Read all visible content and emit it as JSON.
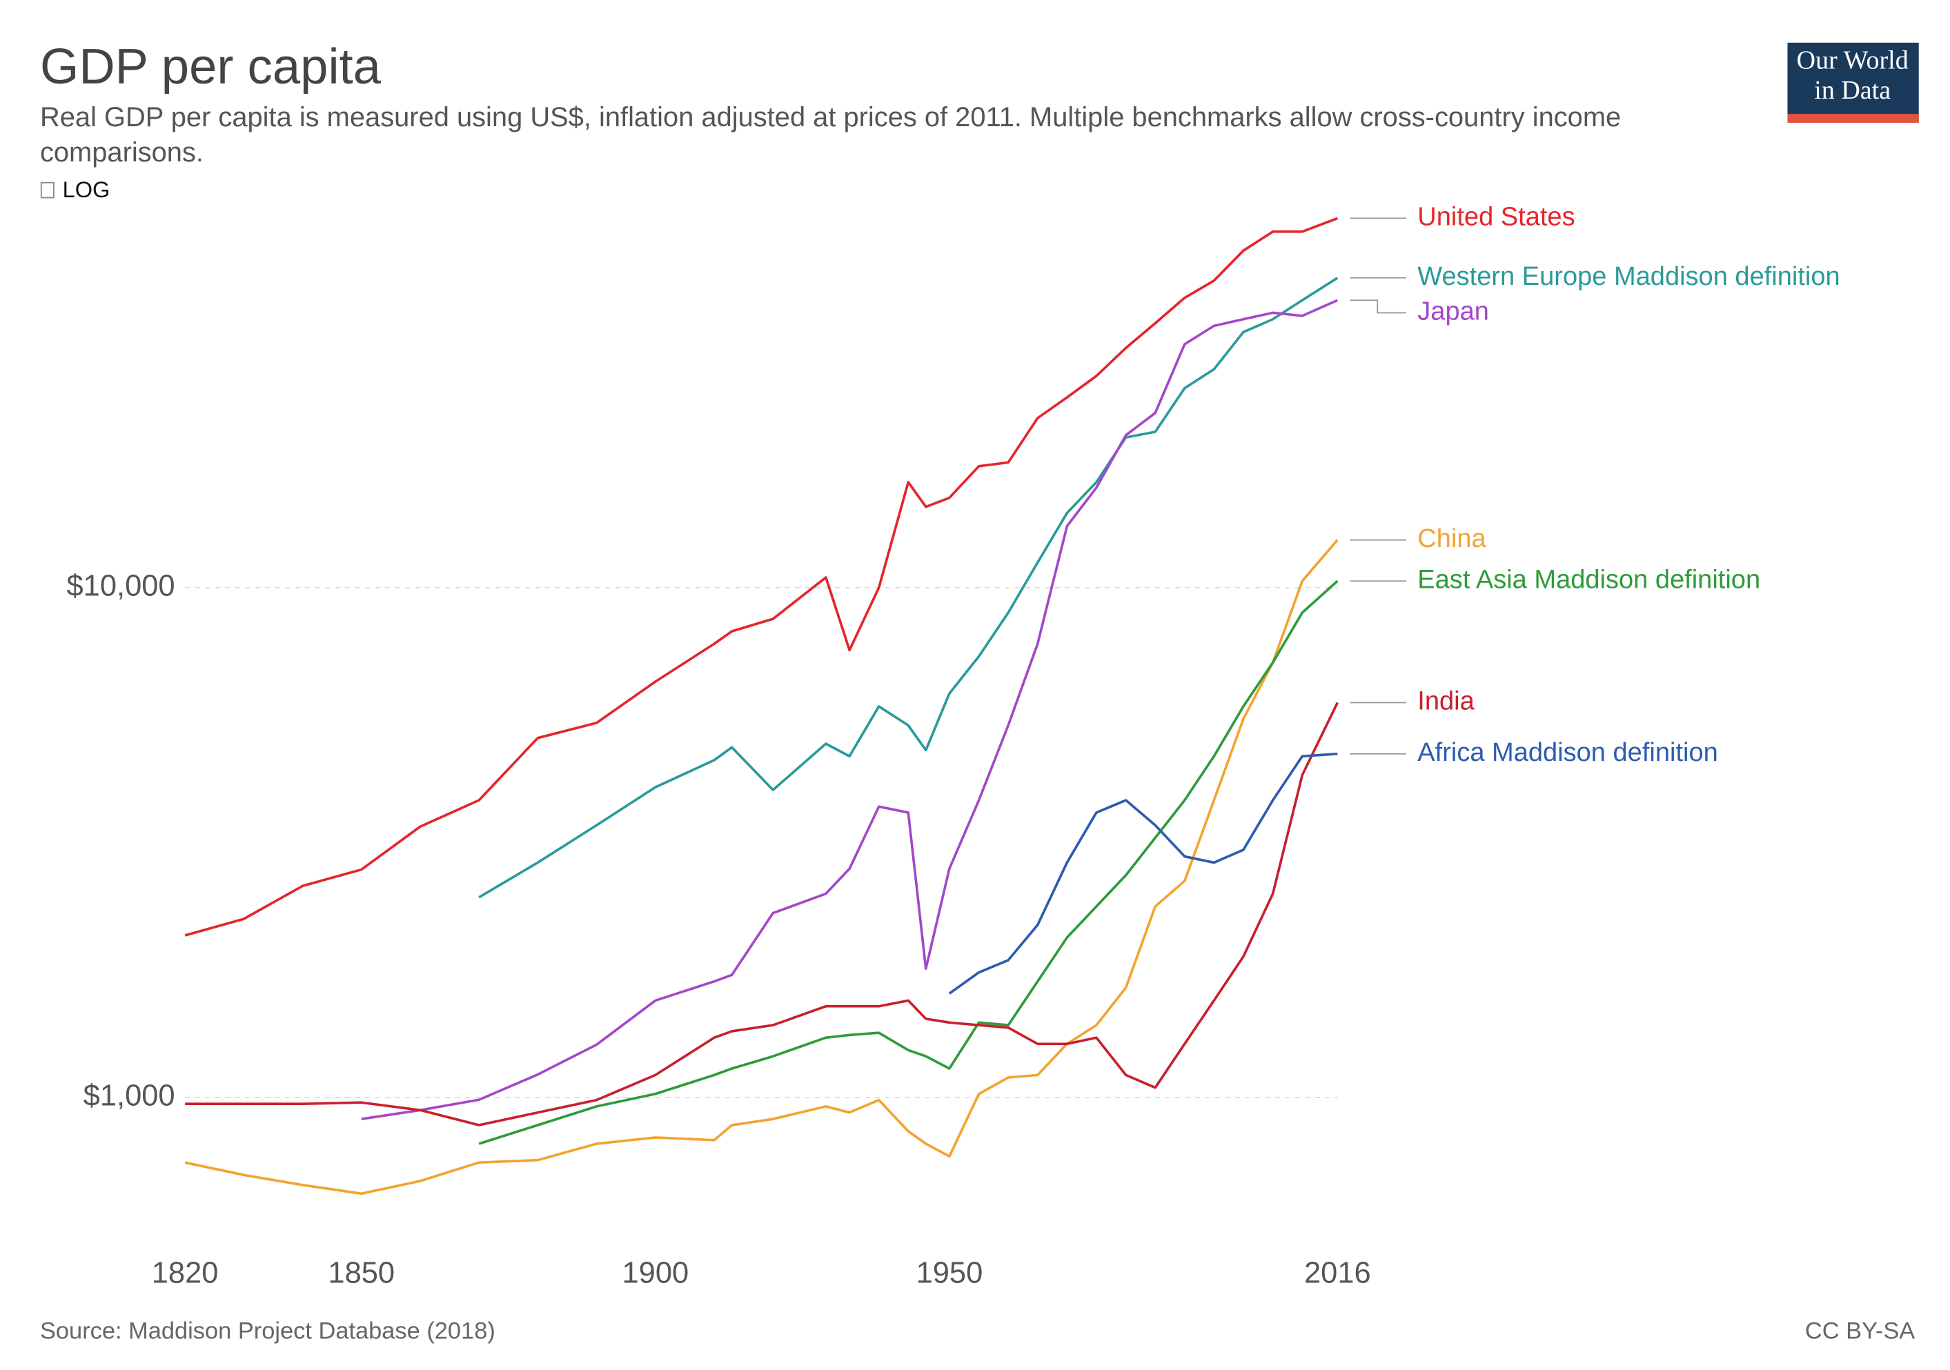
{
  "chart_data": {
    "type": "line",
    "title": "GDP per capita",
    "subtitle": "Real GDP per capita is measured using US$, inflation adjusted at prices of 2011. Multiple benchmarks allow cross-country income comparisons.",
    "scale_toggle": "LOG",
    "logo": [
      "Our World",
      "in Data"
    ],
    "source": "Source: Maddison Project Database (2018)",
    "license": "CC BY-SA",
    "log_scale": true,
    "grid": true,
    "xlim": [
      1820,
      2016
    ],
    "xticks": [
      1820,
      1850,
      1900,
      1950,
      2016
    ],
    "ylim": [
      500,
      60000
    ],
    "yticks": [
      {
        "value": 1000,
        "label": "$1,000"
      },
      {
        "value": 10000,
        "label": "$10,000"
      }
    ],
    "x": [
      1820,
      1830,
      1840,
      1850,
      1860,
      1870,
      1880,
      1890,
      1900,
      1910,
      1913,
      1920,
      1929,
      1933,
      1938,
      1943,
      1946,
      1950,
      1955,
      1960,
      1965,
      1970,
      1975,
      1980,
      1985,
      1990,
      1995,
      2000,
      2005,
      2010,
      2016
    ],
    "series": [
      {
        "name": "United States",
        "color": "#e3262a",
        "values": [
          2080,
          2240,
          2600,
          2800,
          3400,
          3830,
          5070,
          5430,
          6540,
          7760,
          8210,
          8680,
          10470,
          7540,
          10000,
          16100,
          14400,
          15000,
          17300,
          17600,
          21500,
          23600,
          26000,
          29500,
          33000,
          37000,
          40000,
          45800,
          49900,
          49900,
          53000
        ]
      },
      {
        "name": "Western Europe Maddison definition",
        "color": "#2a9a9a",
        "values": [
          null,
          null,
          null,
          null,
          null,
          2470,
          2890,
          3420,
          4060,
          4590,
          4860,
          4010,
          4940,
          4670,
          5850,
          5370,
          4800,
          6200,
          7330,
          8930,
          11200,
          14000,
          16100,
          19700,
          20200,
          24600,
          26800,
          31700,
          33600,
          36600,
          40500
        ]
      },
      {
        "name": "Japan",
        "color": "#a347c9",
        "values": [
          null,
          null,
          null,
          908,
          945,
          990,
          1110,
          1270,
          1550,
          1690,
          1740,
          2300,
          2510,
          2810,
          3720,
          3620,
          1790,
          2810,
          3830,
          5370,
          7760,
          13200,
          15700,
          19900,
          22000,
          30000,
          32600,
          33600,
          34600,
          34100,
          36600
        ]
      },
      {
        "name": "China",
        "color": "#f4a330",
        "values": [
          746,
          705,
          674,
          648,
          686,
          746,
          754,
          812,
          835,
          825,
          883,
          908,
          961,
          935,
          989,
          859,
          812,
          767,
          1017,
          1095,
          1107,
          1274,
          1387,
          1643,
          2370,
          2660,
          3830,
          5530,
          7130,
          10300,
          12400
        ]
      },
      {
        "name": "East Asia Maddison definition",
        "color": "#2e9b3a",
        "values": [
          null,
          null,
          null,
          null,
          null,
          812,
          883,
          961,
          1017,
          1107,
          1140,
          1205,
          1311,
          1326,
          1340,
          1239,
          1205,
          1140,
          1403,
          1387,
          1690,
          2060,
          2370,
          2730,
          3230,
          3830,
          4670,
          5850,
          7130,
          8930,
          10300
        ]
      },
      {
        "name": "India",
        "color": "#c7202e",
        "values": [
          972,
          972,
          972,
          978,
          945,
          883,
          935,
          989,
          1107,
          1311,
          1349,
          1387,
          1510,
          1510,
          1510,
          1550,
          1427,
          1403,
          1387,
          1371,
          1274,
          1274,
          1311,
          1107,
          1046,
          1274,
          1550,
          1890,
          2510,
          4290,
          5950
        ]
      },
      {
        "name": "Africa Maddison definition",
        "color": "#2b5cb0",
        "values": [
          null,
          null,
          null,
          null,
          null,
          null,
          null,
          null,
          null,
          null,
          null,
          null,
          null,
          null,
          null,
          null,
          null,
          1600,
          1760,
          1860,
          2180,
          2890,
          3620,
          3830,
          3420,
          2970,
          2890,
          3060,
          3830,
          4670,
          4720
        ]
      }
    ]
  }
}
